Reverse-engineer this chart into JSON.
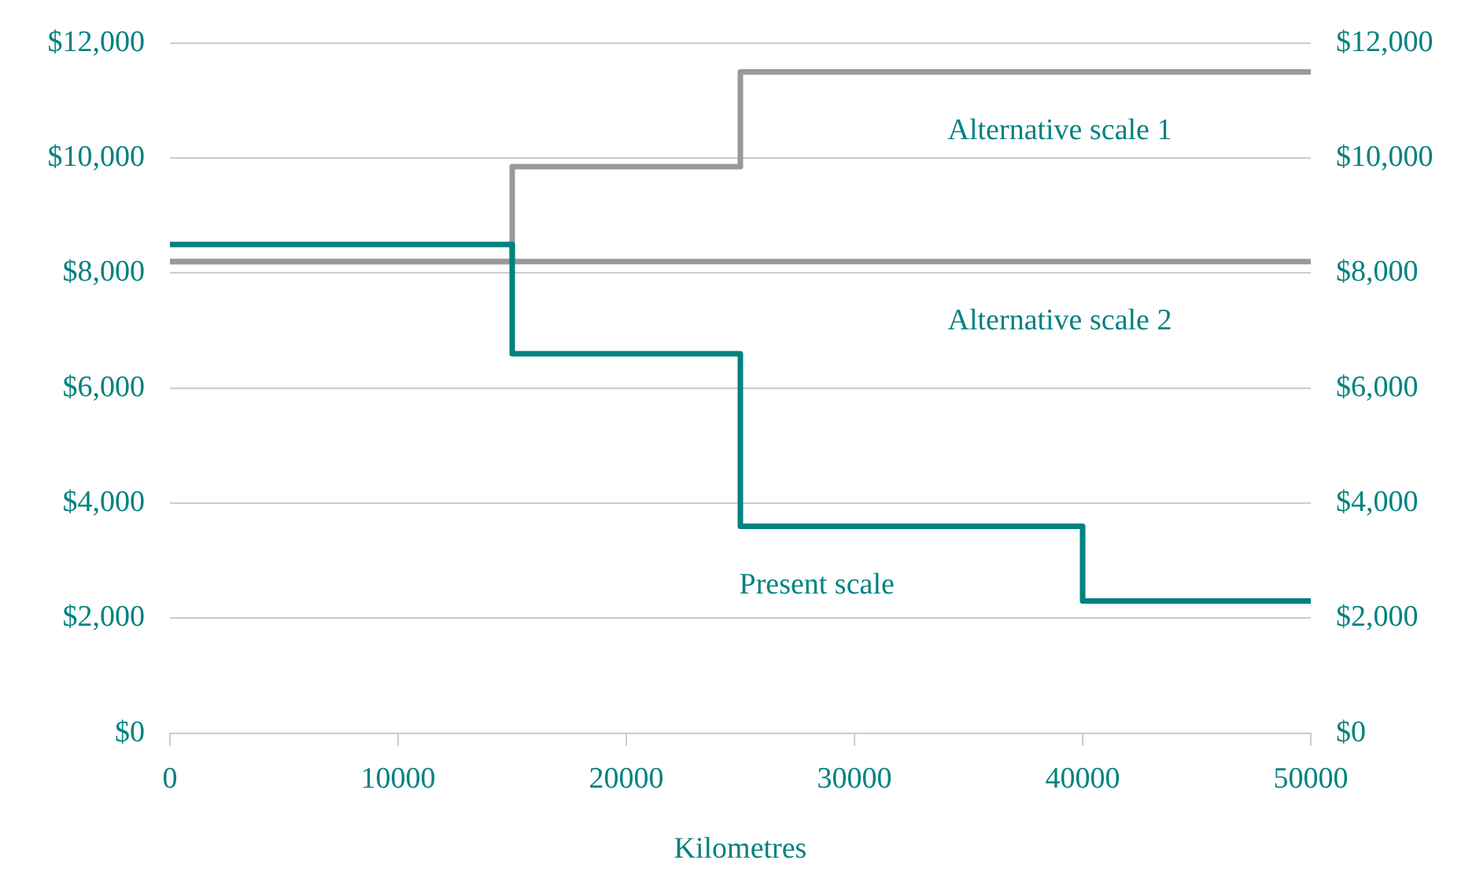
{
  "chart_data": {
    "type": "step",
    "xlabel": "Kilometres",
    "xlim": [
      0,
      50000
    ],
    "xticks": [
      0,
      10000,
      20000,
      30000,
      40000,
      50000
    ],
    "ylim": [
      0,
      12000
    ],
    "yticks": [
      {
        "value": 0,
        "label": "$0"
      },
      {
        "value": 2000,
        "label": "$2,000"
      },
      {
        "value": 4000,
        "label": "$4,000"
      },
      {
        "value": 6000,
        "label": "$6,000"
      },
      {
        "value": 8000,
        "label": "$8,000"
      },
      {
        "value": 10000,
        "label": "$10,000"
      },
      {
        "value": 12000,
        "label": "$12,000"
      }
    ],
    "y2lim": [
      0,
      12000
    ],
    "y2ticks": [
      {
        "value": 0,
        "label": "$0"
      },
      {
        "value": 2000,
        "label": "$2,000"
      },
      {
        "value": 4000,
        "label": "$4,000"
      },
      {
        "value": 6000,
        "label": "$6,000"
      },
      {
        "value": 8000,
        "label": "$8,000"
      },
      {
        "value": 10000,
        "label": "$10,000"
      },
      {
        "value": 12000,
        "label": "$12,000"
      }
    ],
    "grid": "y",
    "legend": false,
    "marker": "none",
    "line_style": "solid",
    "series": [
      {
        "name": "Present scale",
        "color": "#00827f",
        "x": [
          0,
          15000,
          25000,
          40000,
          50000
        ],
        "values": [
          8500,
          6600,
          3600,
          2300,
          2300
        ]
      },
      {
        "name": "Alternative scale 1",
        "color": "#999999",
        "x": [
          0,
          15000,
          25000,
          50000
        ],
        "values": [
          8200,
          9850,
          11500,
          11500
        ]
      },
      {
        "name": "Alternative scale 2",
        "color": "#999999",
        "x": [
          0,
          50000
        ],
        "values": [
          8200,
          8200
        ]
      }
    ]
  }
}
